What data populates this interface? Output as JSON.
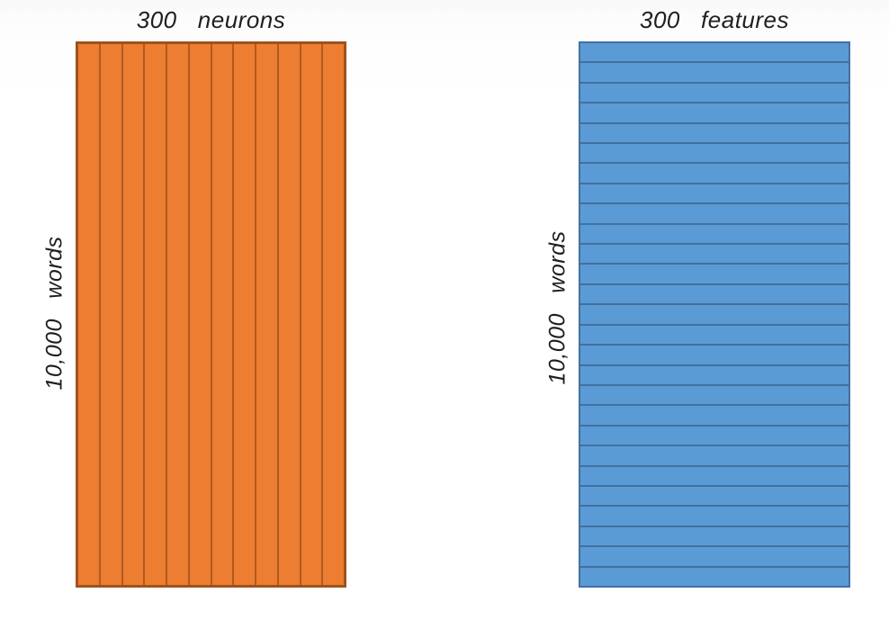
{
  "page": {
    "background_top": "#f9f9fa",
    "background_bottom": "#ffffff",
    "text_color": "#1f1f1f"
  },
  "matrices": [
    {
      "name": "word-neuron-matrix",
      "title": "300   neurons",
      "side_label": "10,000   words",
      "orientation": "columns",
      "divisions": 12,
      "fill_color": "#ED7D31",
      "divider_color": "#AE5A21",
      "outline_color": "#9d531c"
    },
    {
      "name": "word-feature-matrix",
      "title": "300   features",
      "side_label": "10,000   words",
      "orientation": "rows",
      "divisions": 27,
      "fill_color": "#5B9BD5",
      "divider_color": "#41719C",
      "outline_color": "#4471a3"
    }
  ]
}
